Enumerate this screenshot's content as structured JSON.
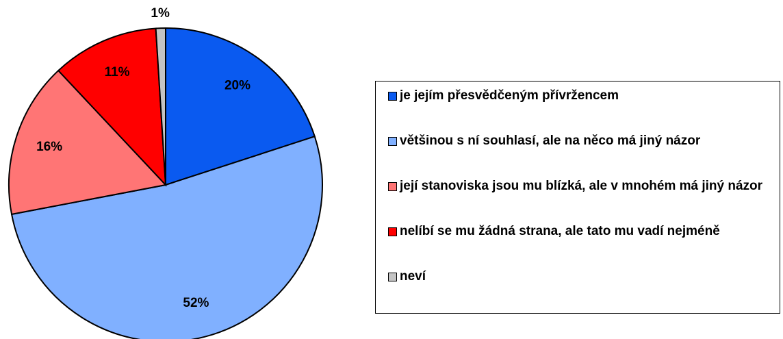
{
  "chart_data": {
    "type": "pie",
    "categories": [
      "je jejím přesvědčeným přívržencem",
      "většinou s ní souhlasí, ale na něco má jiný názor",
      "její stanoviska jsou mu blízká, ale v mnohém má jiný názor",
      "nelíbí se mu žádná strana, ale tato mu vadí nejméně",
      "neví"
    ],
    "values": [
      20,
      52,
      16,
      11,
      1
    ],
    "value_labels": [
      "20%",
      "52%",
      "16%",
      "11%",
      "1%"
    ],
    "colors": [
      "#0a5af0",
      "#80b0ff",
      "#ff7575",
      "#ff0000",
      "#c4c4c4"
    ],
    "legend": "right"
  }
}
